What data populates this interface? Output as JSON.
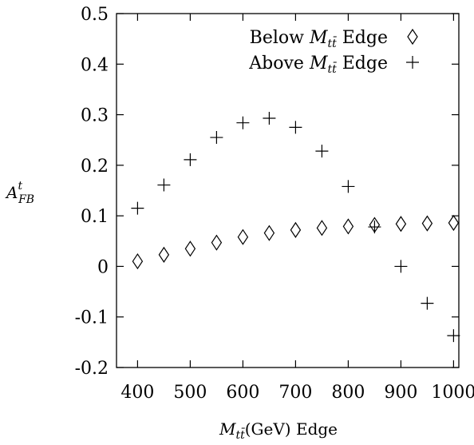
{
  "chart_data": {
    "type": "scatter",
    "title": "",
    "xlabel": {
      "base": "M",
      "sub": "tt̄",
      "rest": "(GeV) Edge"
    },
    "ylabel": {
      "base": "A",
      "sup": "t",
      "sub": "FB"
    },
    "xlim": [
      360,
      1010
    ],
    "ylim": [
      -0.2,
      0.5
    ],
    "xticks": [
      400,
      500,
      600,
      700,
      800,
      900,
      1000
    ],
    "yticks": [
      -0.2,
      -0.1,
      0,
      0.1,
      0.2,
      0.3,
      0.4,
      0.5
    ],
    "ytick_labels": [
      "-0.2",
      "-0.1",
      "0",
      "0.1",
      "0.2",
      "0.3",
      "0.4",
      "0.5"
    ],
    "xtick_labels": [
      "400",
      "500",
      "600",
      "700",
      "800",
      "900",
      "1000"
    ],
    "legend_position": "top-right",
    "series": [
      {
        "name": {
          "pre": "Below",
          "base": "M",
          "sub": "tt̄",
          "post": "Edge"
        },
        "marker": "diamond",
        "x": [
          400,
          450,
          500,
          550,
          600,
          650,
          700,
          750,
          800,
          850,
          900,
          950,
          1000
        ],
        "y": [
          0.01,
          0.023,
          0.035,
          0.047,
          0.058,
          0.066,
          0.072,
          0.076,
          0.079,
          0.082,
          0.084,
          0.085,
          0.086
        ]
      },
      {
        "name": {
          "pre": "Above",
          "base": "M",
          "sub": "tt̄",
          "post": "Edge"
        },
        "marker": "plus",
        "x": [
          400,
          450,
          500,
          550,
          600,
          650,
          700,
          750,
          800,
          850,
          900,
          950,
          1000
        ],
        "y": [
          0.115,
          0.161,
          0.211,
          0.255,
          0.284,
          0.293,
          0.275,
          0.228,
          0.158,
          0.078,
          0.0,
          -0.073,
          -0.137
        ]
      }
    ]
  }
}
